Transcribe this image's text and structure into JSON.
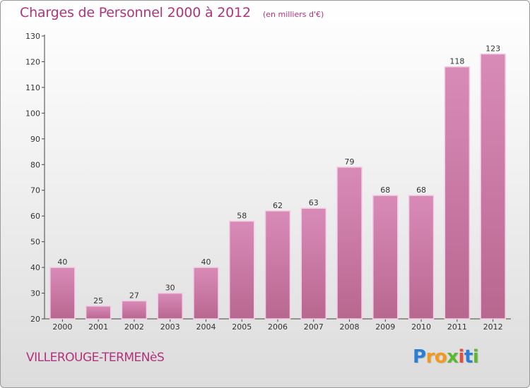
{
  "chart_data": {
    "type": "bar",
    "title": "Charges de Personnel 2000 à 2012",
    "subtitle": "(en milliers d'€)",
    "categories": [
      "2000",
      "2001",
      "2002",
      "2003",
      "2004",
      "2005",
      "2006",
      "2007",
      "2008",
      "2009",
      "2010",
      "2011",
      "2012"
    ],
    "values": [
      40,
      25,
      27,
      30,
      40,
      58,
      62,
      63,
      79,
      68,
      68,
      118,
      123
    ],
    "ylim": [
      20,
      130
    ],
    "yticks": [
      20,
      30,
      40,
      50,
      60,
      70,
      80,
      90,
      100,
      110,
      120,
      130
    ],
    "grid": false,
    "bar_color": "#d98bb8",
    "bar_color_dark": "#b8678f"
  },
  "commune": "VILLEROUGE-TERMENèS",
  "logo": {
    "letters": [
      "P",
      "r",
      "o",
      "x",
      "i",
      "t",
      "i"
    ],
    "colors": [
      "#2a7fd4",
      "#f39a1e",
      "#f39a1e",
      "#5cb82e",
      "#e84c3d",
      "#2a7fd4",
      "#5cb82e"
    ]
  }
}
